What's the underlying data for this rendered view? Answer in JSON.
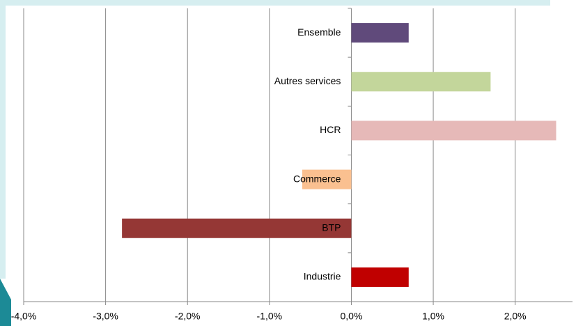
{
  "chart_data": {
    "type": "barh",
    "categories": [
      "Ensemble",
      "Autres services",
      "HCR",
      "Commerce",
      "BTP",
      "Industrie"
    ],
    "values": [
      0.7,
      1.7,
      2.5,
      -0.6,
      -2.8,
      0.7
    ],
    "colors": [
      "#604a7b",
      "#c3d69b",
      "#e6b9b8",
      "#fac090",
      "#953735",
      "#c00000"
    ],
    "xlim": [
      -4,
      2.7
    ],
    "xticks": [
      {
        "value": -4,
        "label": "-4,0%"
      },
      {
        "value": -3,
        "label": "-3,0%"
      },
      {
        "value": -2,
        "label": "-2,0%"
      },
      {
        "value": -1,
        "label": "-1,0%"
      },
      {
        "value": 0,
        "label": "0,0%"
      },
      {
        "value": 1,
        "label": "1,0%"
      },
      {
        "value": 2,
        "label": "2,0%"
      }
    ],
    "grid": true
  }
}
